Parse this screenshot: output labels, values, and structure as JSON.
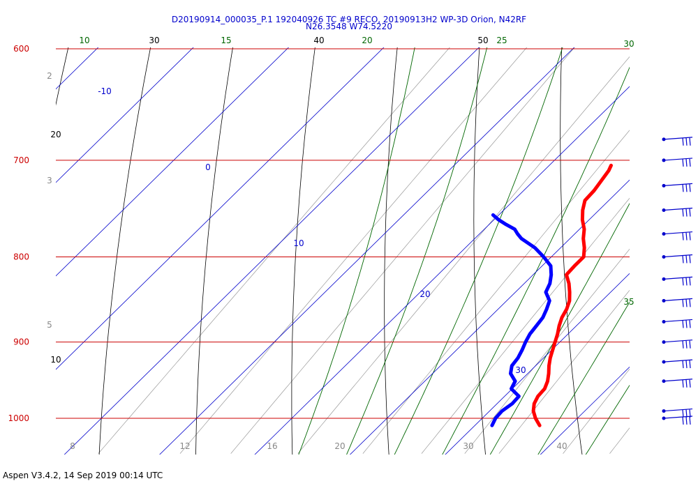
{
  "chart_data": {
    "type": "line",
    "title": "D20190914_000035_P.1 192040926 TC #9 RECO, 20190913H2 WP-3D Orion, N42RF",
    "subtitle": "N26.3548 W74.5220",
    "isobars": [
      "600",
      "700",
      "800",
      "900",
      "1000"
    ],
    "isotherm_labels": [
      {
        "value": "-10"
      },
      {
        "value": "0"
      },
      {
        "value": "10"
      },
      {
        "value": "20"
      },
      {
        "value": "30"
      }
    ],
    "dry_adiabat_labels": [
      "10",
      "20",
      "30",
      "40",
      "50"
    ],
    "moist_adiabat_labels": [
      "10",
      "15",
      "20",
      "25",
      "30",
      "35"
    ],
    "mixing_ratio_labels": [
      "2",
      "3",
      "5",
      "8",
      "12",
      "16",
      "20",
      "30",
      "40"
    ],
    "series": [
      {
        "color": "#ff0000",
        "points": [
          [
            1010,
            26.8
          ],
          [
            1000,
            25.6
          ],
          [
            990,
            24.6
          ],
          [
            980,
            23.9
          ],
          [
            970,
            23.5
          ],
          [
            960,
            23.4
          ],
          [
            950,
            22.9
          ],
          [
            940,
            22.2
          ],
          [
            930,
            21.4
          ],
          [
            920,
            20.7
          ],
          [
            910,
            20.1
          ],
          [
            900,
            19.5
          ],
          [
            890,
            18.9
          ],
          [
            880,
            18.2
          ],
          [
            870,
            17.6
          ],
          [
            860,
            17.2
          ],
          [
            850,
            16.6
          ],
          [
            840,
            15.7
          ],
          [
            830,
            14.7
          ],
          [
            820,
            13.5
          ],
          [
            810,
            13.4
          ],
          [
            800,
            13.4
          ],
          [
            790,
            12.5
          ],
          [
            780,
            11.4
          ],
          [
            770,
            10.5
          ],
          [
            760,
            9.3
          ],
          [
            750,
            8.3
          ],
          [
            740,
            7.5
          ],
          [
            730,
            7.4
          ],
          [
            720,
            7.1
          ],
          [
            710,
            6.8
          ],
          [
            705,
            6.5
          ]
        ]
      },
      {
        "color": "#0000ff",
        "points": [
          [
            1010,
            21.8
          ],
          [
            1000,
            21.4
          ],
          [
            990,
            21.3
          ],
          [
            980,
            21.6
          ],
          [
            970,
            21.5
          ],
          [
            965,
            20.7
          ],
          [
            960,
            19.9
          ],
          [
            950,
            19.5
          ],
          [
            940,
            18.2
          ],
          [
            930,
            17.5
          ],
          [
            920,
            17.3
          ],
          [
            910,
            16.9
          ],
          [
            900,
            16.4
          ],
          [
            890,
            16.0
          ],
          [
            880,
            15.8
          ],
          [
            870,
            15.6
          ],
          [
            860,
            15.1
          ],
          [
            850,
            14.5
          ],
          [
            840,
            13.2
          ],
          [
            830,
            12.7
          ],
          [
            820,
            11.9
          ],
          [
            810,
            10.9
          ],
          [
            800,
            9.2
          ],
          [
            790,
            7.3
          ],
          [
            780,
            4.9
          ],
          [
            775,
            4.0
          ],
          [
            770,
            3.2
          ],
          [
            765,
            1.8
          ],
          [
            760,
            0.5
          ],
          [
            755,
            -0.6
          ]
        ]
      }
    ],
    "wind_barbs": [
      {
        "p": 1000
      },
      {
        "p": 990
      },
      {
        "p": 950
      },
      {
        "p": 925
      },
      {
        "p": 900
      },
      {
        "p": 875
      },
      {
        "p": 850
      },
      {
        "p": 825
      },
      {
        "p": 800
      },
      {
        "p": 775
      },
      {
        "p": 750
      },
      {
        "p": 725
      },
      {
        "p": 700
      },
      {
        "p": 680
      }
    ]
  },
  "footer": "Aspen V3.4.2, 14 Sep 2019  00:14 UTC"
}
